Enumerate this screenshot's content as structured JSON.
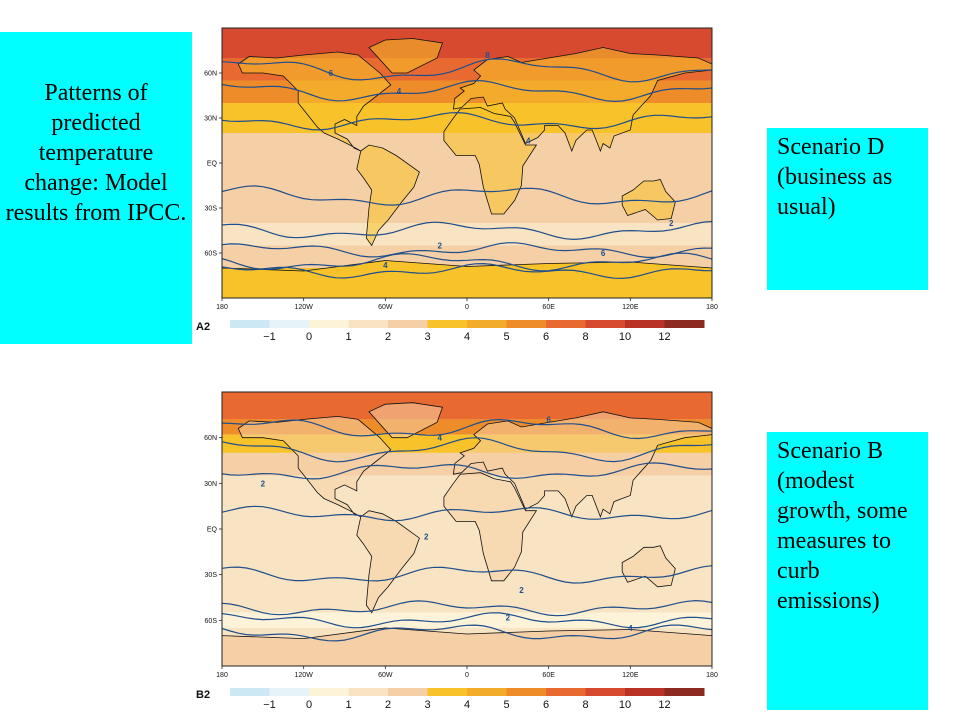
{
  "title": "Patterns of predicted temperature change: Model results from IPCC.",
  "scenarios": [
    {
      "id": "A2",
      "caption": "Scenario D (business as usual)",
      "bands": [
        {
          "lat": 90,
          "level": 10
        },
        {
          "lat": 70,
          "level": 8
        },
        {
          "lat": 55,
          "level": 6
        },
        {
          "lat": 40,
          "level": 4
        },
        {
          "lat": 20,
          "level": 3
        },
        {
          "lat": -40,
          "level": 2
        },
        {
          "lat": -55,
          "level": 3
        },
        {
          "lat": -70,
          "level": 4
        },
        {
          "lat": -90,
          "level": 4
        }
      ],
      "land_level": 4,
      "contours": [
        {
          "value": "8",
          "lat": 72,
          "lon": 15
        },
        {
          "value": "6",
          "lat": 60,
          "lon": -100
        },
        {
          "value": "4",
          "lat": 48,
          "lon": -50
        },
        {
          "value": "4",
          "lat": 15,
          "lon": 45
        },
        {
          "value": "2",
          "lat": -40,
          "lon": 150
        },
        {
          "value": "2",
          "lat": -55,
          "lon": -20
        },
        {
          "value": "6",
          "lat": -60,
          "lon": 100
        },
        {
          "value": "4",
          "lat": -68,
          "lon": -60
        }
      ]
    },
    {
      "id": "B2",
      "caption": "Scenario B (modest growth, some measures to curb emissions)",
      "bands": [
        {
          "lat": 90,
          "level": 8
        },
        {
          "lat": 72,
          "level": 6
        },
        {
          "lat": 62,
          "level": 4
        },
        {
          "lat": 50,
          "level": 3
        },
        {
          "lat": 35,
          "level": 2
        },
        {
          "lat": -55,
          "level": 1
        },
        {
          "lat": -65,
          "level": 2
        },
        {
          "lat": -90,
          "level": 3
        }
      ],
      "land_level": 3,
      "contours": [
        {
          "value": "6",
          "lat": 72,
          "lon": 60
        },
        {
          "value": "4",
          "lat": 60,
          "lon": -20
        },
        {
          "value": "2",
          "lat": 30,
          "lon": -150
        },
        {
          "value": "2",
          "lat": -5,
          "lon": -30
        },
        {
          "value": "2",
          "lat": -40,
          "lon": 40
        },
        {
          "value": "2",
          "lat": -58,
          "lon": 30
        },
        {
          "value": "4",
          "lat": -65,
          "lon": 120
        }
      ]
    }
  ],
  "lat_ticks": [
    "60N",
    "30N",
    "EQ",
    "30S",
    "60S"
  ],
  "lon_ticks": [
    "180",
    "120W",
    "60W",
    "0",
    "60E",
    "120E",
    "180"
  ],
  "colorbar": {
    "ticks": [
      "−1",
      "0",
      "1",
      "2",
      "3",
      "4",
      "5",
      "6",
      "8",
      "10",
      "12"
    ],
    "colors": [
      "#cde8f5",
      "#e6f3f8",
      "#fdf3d8",
      "#f8e4c2",
      "#f5cfa5",
      "#f7c22a",
      "#f3ab2a",
      "#ef8c2a",
      "#e86a30",
      "#d84a30",
      "#b83226",
      "#8c2a22"
    ]
  },
  "land_color": "#f5c540"
}
